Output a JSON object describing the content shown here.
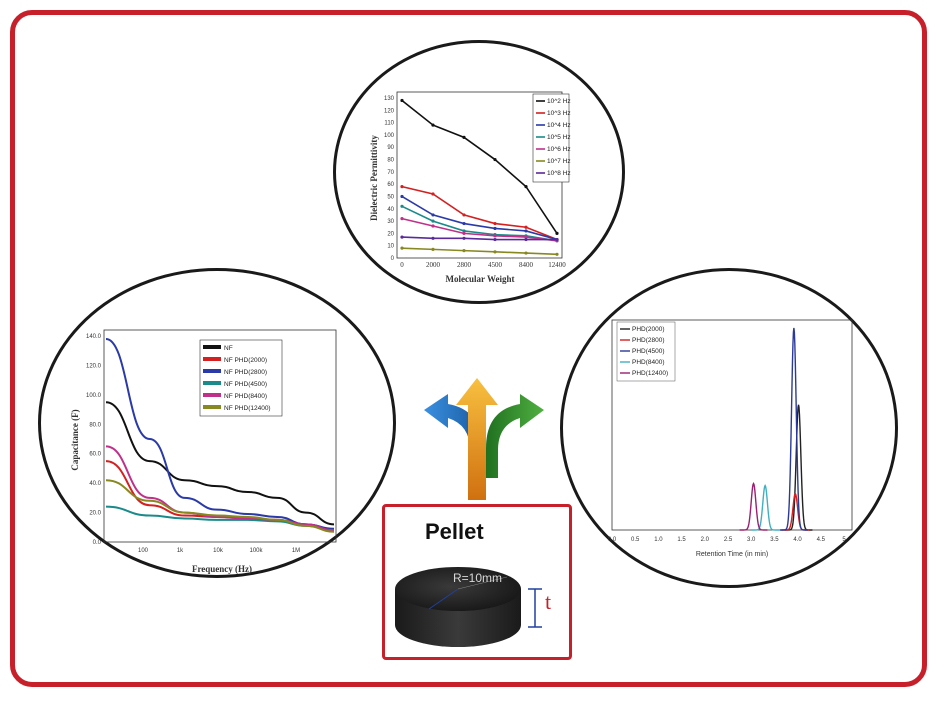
{
  "chart_data": [
    {
      "type": "line",
      "xlabel": "Molecular Weight",
      "ylabel": "Dielectric Permittivity",
      "categories": [
        "0",
        "2000",
        "2800",
        "4500",
        "8400",
        "12400"
      ],
      "x_ticks": [
        "0",
        "2000",
        "2800",
        "4500",
        "8400",
        "12400"
      ],
      "y_ticks": [
        "0",
        "10",
        "20",
        "30",
        "40",
        "50",
        "60",
        "70",
        "80",
        "90",
        "100",
        "110",
        "120",
        "130"
      ],
      "ylim": [
        0,
        130
      ],
      "legend": [
        "10^2 Hz",
        "10^3 Hz",
        "10^4 Hz",
        "10^5 Hz",
        "10^6 Hz",
        "10^7 Hz",
        "10^8 Hz"
      ],
      "series": [
        {
          "name": "10^2 Hz",
          "color": "#111111",
          "values": [
            128,
            108,
            98,
            80,
            58,
            20
          ]
        },
        {
          "name": "10^3 Hz",
          "color": "#d42020",
          "values": [
            58,
            52,
            35,
            28,
            25,
            15
          ]
        },
        {
          "name": "10^4 Hz",
          "color": "#2a3aa8",
          "values": [
            50,
            35,
            28,
            24,
            22,
            15
          ]
        },
        {
          "name": "10^5 Hz",
          "color": "#1a8a8a",
          "values": [
            42,
            30,
            22,
            19,
            18,
            14
          ]
        },
        {
          "name": "10^6 Hz",
          "color": "#c0308a",
          "values": [
            32,
            26,
            20,
            18,
            17,
            14
          ]
        },
        {
          "name": "10^7 Hz",
          "color": "#888820",
          "values": [
            8,
            7,
            6,
            5,
            4,
            3
          ]
        },
        {
          "name": "10^8 Hz",
          "color": "#5a2a9a",
          "values": [
            17,
            16,
            16,
            15,
            15,
            15
          ]
        }
      ]
    },
    {
      "type": "line",
      "xlabel": "Frequency (Hz)",
      "ylabel": "Capacitance (F)",
      "x_ticks": [
        "100",
        "1k",
        "10k",
        "100k",
        "1M"
      ],
      "y_ticks": [
        "0.0",
        "20.0",
        "40.0",
        "60.0",
        "80.0",
        "100.0",
        "120.0",
        "140.0"
      ],
      "ylim": [
        0,
        140
      ],
      "legend": [
        "NF",
        "NF PHD(2000)",
        "NF PHD(2800)",
        "NF PHD(4500)",
        "NF PHD(8400)",
        "NF PHD(12400)"
      ],
      "series": [
        {
          "name": "NF",
          "color": "#111111",
          "values": [
            95,
            55,
            42,
            38,
            34,
            30,
            20,
            12
          ]
        },
        {
          "name": "NF PHD(2000)",
          "color": "#d42020",
          "values": [
            55,
            25,
            18,
            17,
            16,
            15,
            12,
            8
          ]
        },
        {
          "name": "NF PHD(2800)",
          "color": "#2a3aa8",
          "values": [
            138,
            70,
            30,
            22,
            19,
            17,
            12,
            9
          ]
        },
        {
          "name": "NF PHD(4500)",
          "color": "#1a8a8a",
          "values": [
            24,
            18,
            16,
            15,
            15,
            14,
            11,
            8
          ]
        },
        {
          "name": "NF PHD(8400)",
          "color": "#c0308a",
          "values": [
            65,
            30,
            20,
            17,
            16,
            15,
            12,
            8
          ]
        },
        {
          "name": "NF PHD(12400)",
          "color": "#888820",
          "values": [
            42,
            28,
            20,
            18,
            17,
            15,
            11,
            7
          ]
        }
      ]
    },
    {
      "type": "line",
      "xlabel": "Retention Time (in min)",
      "ylabel": "",
      "x_ticks": [
        "0.0",
        "0.5",
        "1.0",
        "1.5",
        "2.0",
        "2.5",
        "3.0",
        "3.5",
        "4.0",
        "4.5",
        "5"
      ],
      "xlim": [
        0,
        5
      ],
      "legend": [
        "PHD(2000)",
        "PHD(2800)",
        "PHD(4500)",
        "PHD(8400)",
        "PHD(12400)"
      ],
      "series": [
        {
          "name": "PHD(2000)",
          "color": "#222222",
          "center": 4.02,
          "height": 0.62
        },
        {
          "name": "PHD(2800)",
          "color": "#d42020",
          "center": 3.95,
          "height": 0.18
        },
        {
          "name": "PHD(4500)",
          "color": "#2a3a9a",
          "center": 3.92,
          "height": 1.0
        },
        {
          "name": "PHD(8400)",
          "color": "#40b0c0",
          "center": 3.3,
          "height": 0.22
        },
        {
          "name": "PHD(12400)",
          "color": "#9a2070",
          "center": 3.05,
          "height": 0.23
        }
      ]
    }
  ],
  "pellet": {
    "title": "Pellet",
    "radius_label": "R=10mm",
    "thickness_label": "t"
  },
  "colors": {
    "frame": "#c8202a",
    "arrow_orange": "#f0a020",
    "arrow_blue": "#2a7ac8",
    "arrow_green": "#3aa040"
  }
}
